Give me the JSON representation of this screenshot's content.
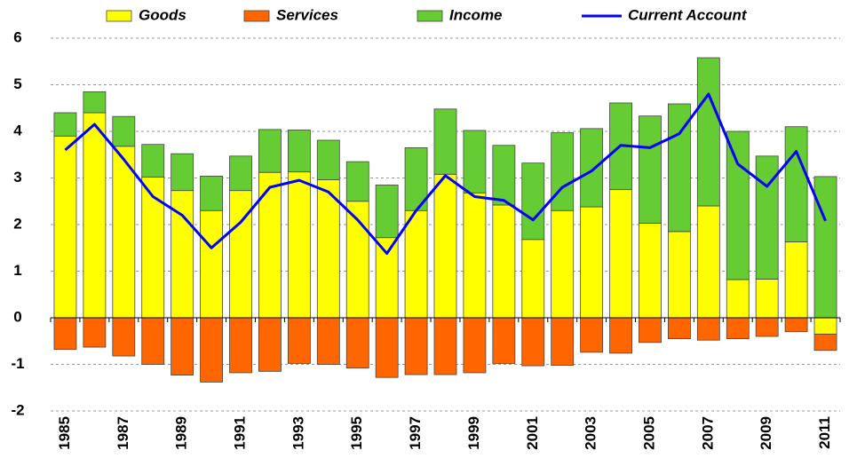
{
  "chart_data": {
    "type": "bar",
    "stacked": true,
    "categories": [
      "1985",
      null,
      "1987",
      null,
      "1989",
      null,
      "1991",
      null,
      "1993",
      null,
      "1995",
      null,
      "1997",
      null,
      "1999",
      null,
      "2001",
      null,
      "2003",
      null,
      "2005",
      null,
      "2007",
      null,
      "2009",
      null,
      "2011"
    ],
    "series": [
      {
        "name": "Goods",
        "type": "bar",
        "color": "#ffff00",
        "values": [
          3.9,
          4.4,
          3.68,
          3.02,
          2.73,
          2.3,
          2.73,
          3.12,
          3.13,
          2.96,
          2.5,
          1.72,
          2.3,
          3.08,
          2.68,
          2.42,
          1.68,
          2.3,
          2.38,
          2.75,
          2.03,
          1.85,
          2.4,
          0.82,
          0.83,
          1.63,
          -0.35
        ]
      },
      {
        "name": "Services",
        "type": "bar",
        "color": "#ff6600",
        "values": [
          -0.68,
          -0.63,
          -0.82,
          -1.0,
          -1.23,
          -1.38,
          -1.18,
          -1.15,
          -0.98,
          -1.0,
          -1.08,
          -1.28,
          -1.22,
          -1.22,
          -1.18,
          -0.98,
          -1.03,
          -1.02,
          -0.74,
          -0.76,
          -0.53,
          -0.45,
          -0.48,
          -0.45,
          -0.4,
          -0.3,
          -0.35
        ]
      },
      {
        "name": "Income",
        "type": "bar",
        "color": "#66cc33",
        "values": [
          0.5,
          0.45,
          0.64,
          0.7,
          0.79,
          0.74,
          0.74,
          0.92,
          0.9,
          0.85,
          0.85,
          1.13,
          1.35,
          1.4,
          1.34,
          1.28,
          1.64,
          1.67,
          1.68,
          1.86,
          2.3,
          2.74,
          3.18,
          3.18,
          2.64,
          2.47,
          3.03
        ]
      },
      {
        "name": "Current Account",
        "type": "line",
        "color": "#0000ff",
        "values": [
          3.6,
          4.15,
          3.4,
          2.6,
          2.2,
          1.5,
          2.05,
          2.8,
          2.95,
          2.7,
          2.1,
          1.38,
          2.3,
          3.05,
          2.6,
          2.52,
          2.1,
          2.8,
          3.15,
          3.7,
          3.65,
          3.95,
          4.8,
          3.3,
          2.82,
          3.57,
          2.08
        ]
      }
    ],
    "ylim": [
      -2,
      6
    ],
    "yticks": [
      -2,
      -1,
      0,
      1,
      2,
      3,
      4,
      5,
      6
    ],
    "grid": true,
    "legend": "top"
  }
}
